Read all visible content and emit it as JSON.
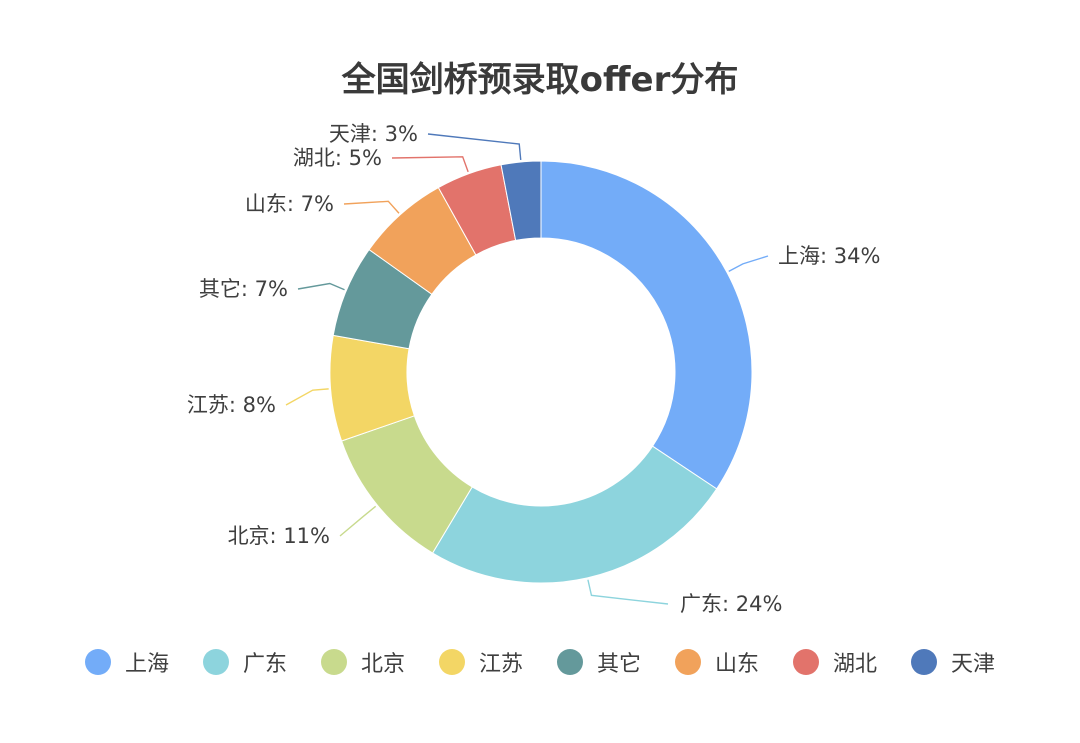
{
  "chart_data": {
    "type": "pie",
    "title": "全国剑桥预录取offer分布",
    "series": [
      {
        "name": "上海",
        "value": 34,
        "label": "上海: 34%",
        "color": "#73acf8"
      },
      {
        "name": "广东",
        "value": 24,
        "label": "广东: 24%",
        "color": "#8dd4dd"
      },
      {
        "name": "北京",
        "value": 11,
        "label": "北京: 11%",
        "color": "#c8da8d"
      },
      {
        "name": "江苏",
        "value": 8,
        "label": "江苏: 8%",
        "color": "#f3d665"
      },
      {
        "name": "其它",
        "value": 7,
        "label": "其它: 7%",
        "color": "#64999b"
      },
      {
        "name": "山东",
        "value": 7,
        "label": "山东: 7%",
        "color": "#f1a25b"
      },
      {
        "name": "湖北",
        "value": 5,
        "label": "湖北: 5%",
        "color": "#e2736b"
      },
      {
        "name": "天津",
        "value": 3,
        "label": "天津: 3%",
        "color": "#4f79ba"
      }
    ],
    "legend_position": "bottom"
  }
}
